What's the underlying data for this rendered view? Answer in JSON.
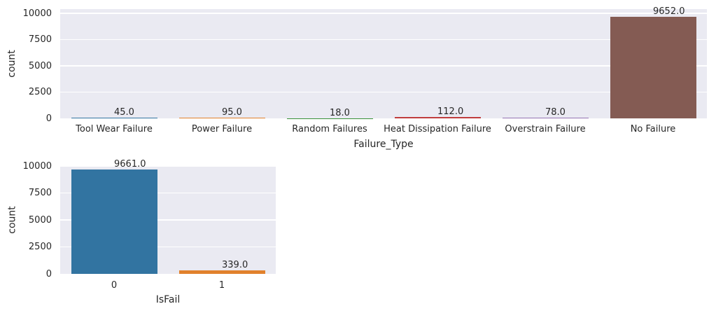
{
  "figure": {
    "background": "#ffffff",
    "plot_background": "#eaeaf2",
    "grid_color": "#ffffff",
    "text_color": "#262626"
  },
  "chart_data": [
    {
      "type": "bar",
      "title": "",
      "categories": [
        "Tool Wear Failure",
        "Power Failure",
        "Random Failures",
        "Heat Dissipation Failure",
        "Overstrain Failure",
        "No Failure"
      ],
      "values": [
        45,
        95,
        18,
        112,
        78,
        9652
      ],
      "bar_labels": [
        "45.0",
        "95.0",
        "18.0",
        "112.0",
        "78.0",
        "9652.0"
      ],
      "bar_colors": [
        "#3274a1",
        "#e1812c",
        "#3a923a",
        "#c03d3e",
        "#9372b2",
        "#845b53"
      ],
      "xlabel": "Failure_Type",
      "ylabel": "count",
      "yticks": [
        0,
        2500,
        5000,
        7500,
        10000
      ],
      "ylim": [
        0,
        10400
      ],
      "grid": true,
      "legend": false
    },
    {
      "type": "bar",
      "title": "",
      "categories": [
        "0",
        "1"
      ],
      "values": [
        9661,
        339
      ],
      "bar_labels": [
        "9661.0",
        "339.0"
      ],
      "bar_colors": [
        "#3274a1",
        "#e1812c"
      ],
      "xlabel": "IsFail",
      "ylabel": "count",
      "yticks": [
        0,
        2500,
        5000,
        7500,
        10000
      ],
      "ylim": [
        0,
        10070
      ],
      "grid": true,
      "legend": false
    }
  ]
}
